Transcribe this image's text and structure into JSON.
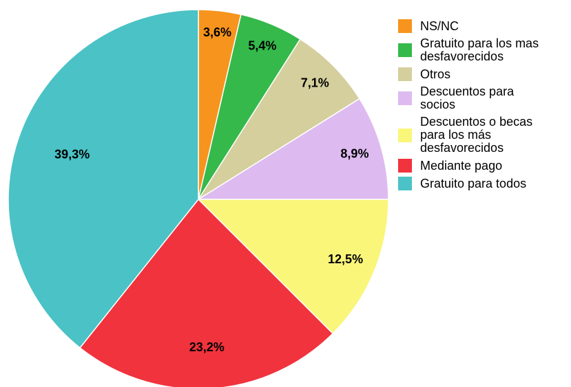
{
  "chart_data": {
    "type": "pie",
    "categories": [
      "NS/NC",
      "Gratuito para los mas desfavorecidos",
      "Otros",
      "Descuentos para socios",
      "Descuentos o becas para los más desfavorecidos",
      "Mediante pago",
      "Gratuito para todos"
    ],
    "values": [
      3.6,
      5.4,
      7.1,
      8.9,
      12.5,
      23.2,
      39.3
    ],
    "value_labels": [
      "3,6%",
      "5,4%",
      "7,1%",
      "8,9%",
      "12,5%",
      "23,2%",
      "39,3%"
    ],
    "colors": [
      "#f7941d",
      "#35b94b",
      "#d4cf9d",
      "#ddbbf0",
      "#f9f67a",
      "#f0333d",
      "#4bc2c5"
    ],
    "legend": "right"
  }
}
